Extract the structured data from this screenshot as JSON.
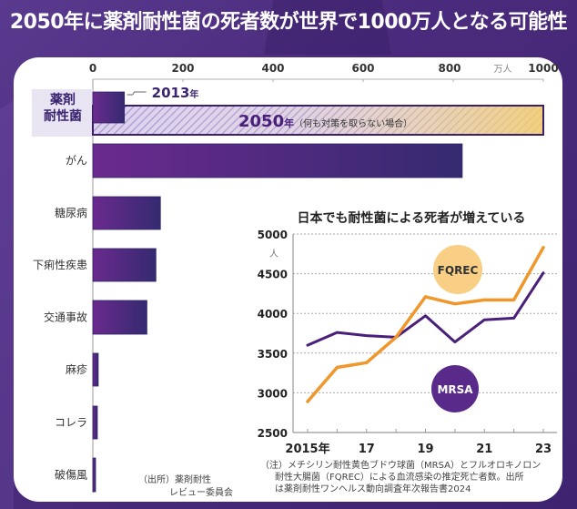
{
  "title": "2050年に薬剤耐性菌の死者数が世界で1000万人となる可能性",
  "colors": {
    "background": "#4a2a7c",
    "bar_start": "#6a2a8e",
    "bar_end": "#352a70",
    "highlight_bg": "#e8e4f2",
    "projection_stripe": "#b8a8da",
    "projection_end": "#f5cf6a",
    "fqrec_line": "#f0962a",
    "fqrec_bubble": "#f8cf85",
    "mrsa_line": "#4a1f7a",
    "mrsa_bubble": "#5a2a8a"
  },
  "chart_data": [
    {
      "type": "bar",
      "orientation": "horizontal",
      "title": "2050年に薬剤耐性菌の死者数が世界で1000万人となる可能性",
      "unit": "万人",
      "xlim": [
        0,
        1000
      ],
      "ticks": [
        0,
        200,
        400,
        600,
        800,
        1000
      ],
      "tick_labels": [
        "0",
        "200",
        "400",
        "600",
        "800",
        "1000"
      ],
      "categories": [
        "薬剤耐性菌",
        "がん",
        "糖尿病",
        "下痢性疾患",
        "交通事故",
        "麻疹",
        "コレラ",
        "破傷風"
      ],
      "category_labels": [
        [
          "薬剤",
          "耐性菌"
        ],
        [
          "がん"
        ],
        [
          "糖尿病"
        ],
        [
          "下痢性疾患"
        ],
        [
          "交通事故"
        ],
        [
          "麻疹"
        ],
        [
          "コレラ"
        ],
        [
          "破傷風"
        ]
      ],
      "values": [
        70,
        820,
        150,
        140,
        120,
        12,
        10,
        6
      ],
      "projection": {
        "category": "薬剤耐性菌",
        "value": 1000,
        "label_year": "2050",
        "label_year_suffix": "年",
        "label_note": "（何も対策を取らない場合）"
      },
      "baseline_label": {
        "year": "2013",
        "suffix": "年"
      },
      "source": [
        "（出所）薬剤耐性",
        "レビュー委員会"
      ]
    },
    {
      "type": "line",
      "title": "日本でも耐性菌による死者が増えている",
      "ylabel": "人",
      "ylim": [
        2500,
        5000
      ],
      "yticks": [
        2500,
        3000,
        3500,
        4000,
        4500,
        5000
      ],
      "x": [
        2015,
        2016,
        2017,
        2018,
        2019,
        2020,
        2021,
        2022,
        2023
      ],
      "xtick_labels": [
        {
          "x": 2015,
          "label": "2015年"
        },
        {
          "x": 2017,
          "label": "17"
        },
        {
          "x": 2019,
          "label": "19"
        },
        {
          "x": 2021,
          "label": "21"
        },
        {
          "x": 2023,
          "label": "23"
        }
      ],
      "grid": true,
      "series": [
        {
          "name": "FQREC",
          "values": [
            2890,
            3320,
            3380,
            3700,
            4210,
            4120,
            4170,
            4170,
            4830
          ]
        },
        {
          "name": "MRSA",
          "values": [
            3600,
            3760,
            3720,
            3700,
            3970,
            3640,
            3920,
            3940,
            4510
          ]
        }
      ],
      "note": [
        "（注）メチシリン耐性黄色ブドウ球菌（MRSA）とフルオロキノロン",
        "耐性大腸菌（FQREC）による血流感染の推定死亡者数。出所",
        "は薬剤耐性ワンヘルス動向調査年次報告書2024"
      ]
    }
  ]
}
